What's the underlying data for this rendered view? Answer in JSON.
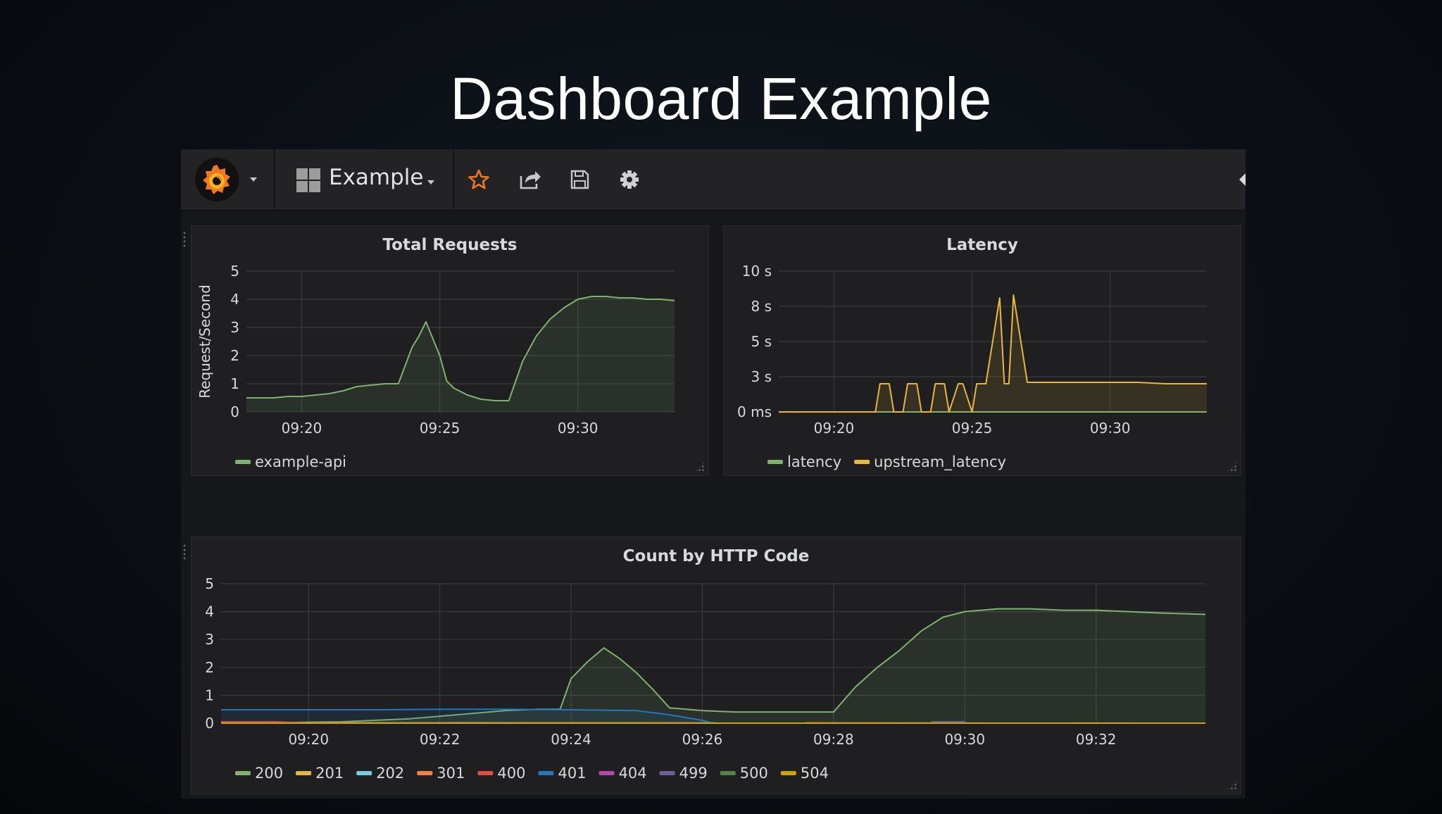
{
  "slide": {
    "title": "Dashboard Example"
  },
  "navbar": {
    "dashboard_name": "Example",
    "icons": [
      "grafana-logo-icon",
      "grid-icon",
      "star-icon",
      "share-icon",
      "save-icon",
      "gear-icon"
    ],
    "star_color": "#eb7b18"
  },
  "panels": {
    "total_requests": {
      "title": "Total Requests",
      "chart_data": {
        "type": "area",
        "title": "Total Requests",
        "xlabel": "",
        "ylabel": "Request/Second",
        "ylim": [
          0,
          5
        ],
        "y_ticks": [
          "0",
          "1",
          "2",
          "3",
          "4",
          "5"
        ],
        "x_ticks": [
          "09:20",
          "09:25",
          "09:30"
        ],
        "x_range": [
          "09:18:00",
          "09:33:30"
        ],
        "grid": true,
        "legend_position": "bottom-left",
        "series": [
          {
            "name": "example-api",
            "color": "#7eb26d",
            "x": [
              "09:18:00",
              "09:18:30",
              "09:19:00",
              "09:19:30",
              "09:20:00",
              "09:20:30",
              "09:21:00",
              "09:21:30",
              "09:22:00",
              "09:22:30",
              "09:23:00",
              "09:23:30",
              "09:24:00",
              "09:24:15",
              "09:24:30",
              "09:24:45",
              "09:25:00",
              "09:25:15",
              "09:25:30",
              "09:26:00",
              "09:26:30",
              "09:27:00",
              "09:27:30",
              "09:28:00",
              "09:28:30",
              "09:29:00",
              "09:29:30",
              "09:30:00",
              "09:30:30",
              "09:31:00",
              "09:31:30",
              "09:32:00",
              "09:32:30",
              "09:33:00",
              "09:33:30"
            ],
            "values": [
              0.5,
              0.5,
              0.5,
              0.55,
              0.55,
              0.6,
              0.65,
              0.75,
              0.9,
              0.95,
              1.0,
              1.0,
              2.3,
              2.7,
              3.2,
              2.6,
              2.0,
              1.1,
              0.85,
              0.6,
              0.45,
              0.4,
              0.4,
              1.8,
              2.7,
              3.3,
              3.7,
              4.0,
              4.1,
              4.1,
              4.05,
              4.05,
              4.0,
              4.0,
              3.95
            ]
          }
        ]
      }
    },
    "latency": {
      "title": "Latency",
      "chart_data": {
        "type": "area",
        "title": "Latency",
        "xlabel": "",
        "ylabel": "",
        "ylim": [
          0,
          10
        ],
        "y_ticks": [
          "0 ms",
          "3 s",
          "5 s",
          "8 s",
          "10 s"
        ],
        "x_ticks": [
          "09:20",
          "09:25",
          "09:30"
        ],
        "x_range": [
          "09:18:00",
          "09:33:30"
        ],
        "grid": true,
        "legend_position": "bottom-left",
        "series": [
          {
            "name": "latency",
            "color": "#7eb26d",
            "x": [
              "09:18:00",
              "09:33:30"
            ],
            "values": [
              0,
              0
            ]
          },
          {
            "name": "upstream_latency",
            "color": "#eab839",
            "x": [
              "09:18:00",
              "09:21:30",
              "09:21:40",
              "09:22:00",
              "09:22:10",
              "09:22:30",
              "09:22:40",
              "09:23:00",
              "09:23:10",
              "09:23:30",
              "09:23:40",
              "09:24:00",
              "09:24:10",
              "09:24:30",
              "09:24:40",
              "09:25:00",
              "09:25:10",
              "09:25:20",
              "09:25:30",
              "09:26:00",
              "09:26:10",
              "09:26:20",
              "09:26:30",
              "09:27:00",
              "09:27:30",
              "09:28:00",
              "09:29:00",
              "09:30:00",
              "09:31:00",
              "09:32:00",
              "09:33:30"
            ],
            "values": [
              0,
              0,
              2.0,
              2.0,
              0,
              0,
              2.0,
              2.0,
              0,
              0,
              2.0,
              2.0,
              0,
              2.0,
              2.0,
              0,
              2.0,
              2.0,
              2.0,
              8.1,
              2.0,
              2.0,
              8.3,
              2.1,
              2.1,
              2.1,
              2.1,
              2.1,
              2.1,
              2.0,
              2.0
            ]
          }
        ]
      }
    },
    "http_codes": {
      "title": "Count by HTTP Code",
      "chart_data": {
        "type": "area",
        "title": "Count by HTTP Code",
        "xlabel": "",
        "ylabel": "",
        "ylim": [
          0,
          5
        ],
        "y_ticks": [
          "0",
          "1",
          "2",
          "3",
          "4",
          "5"
        ],
        "x_ticks": [
          "09:20",
          "09:22",
          "09:24",
          "09:26",
          "09:28",
          "09:30",
          "09:32"
        ],
        "x_range": [
          "09:18:40",
          "09:33:40"
        ],
        "grid": true,
        "legend_position": "bottom-left",
        "series": [
          {
            "name": "200",
            "color": "#7eb26d",
            "x": [
              "09:18:40",
              "09:19:30",
              "09:20:30",
              "09:21:00",
              "09:21:30",
              "09:22:00",
              "09:22:30",
              "09:23:00",
              "09:23:30",
              "09:23:50",
              "09:24:00",
              "09:24:15",
              "09:24:30",
              "09:24:45",
              "09:25:00",
              "09:25:15",
              "09:25:30",
              "09:26:00",
              "09:26:30",
              "09:27:00",
              "09:27:30",
              "09:28:00",
              "09:28:20",
              "09:28:40",
              "09:29:00",
              "09:29:20",
              "09:29:40",
              "09:30:00",
              "09:30:30",
              "09:31:00",
              "09:31:30",
              "09:32:00",
              "09:32:30",
              "09:33:00",
              "09:33:40"
            ],
            "values": [
              0.0,
              0.02,
              0.05,
              0.1,
              0.15,
              0.25,
              0.35,
              0.45,
              0.5,
              0.5,
              1.6,
              2.2,
              2.7,
              2.3,
              1.8,
              1.2,
              0.55,
              0.45,
              0.4,
              0.4,
              0.4,
              0.4,
              1.3,
              2.0,
              2.6,
              3.3,
              3.8,
              4.0,
              4.1,
              4.1,
              4.05,
              4.05,
              4.0,
              3.95,
              3.9
            ]
          },
          {
            "name": "201",
            "color": "#eab839",
            "x": [
              "09:18:40",
              "09:33:40"
            ],
            "values": [
              0.0,
              0.0
            ]
          },
          {
            "name": "202",
            "color": "#6ed0e0",
            "x": [
              "09:18:40",
              "09:33:40"
            ],
            "values": [
              0.0,
              0.0
            ]
          },
          {
            "name": "301",
            "color": "#ef843c",
            "x": [
              "09:18:40",
              "09:33:40"
            ],
            "values": [
              0.02,
              0.0
            ]
          },
          {
            "name": "400",
            "color": "#e24d42",
            "x": [
              "09:18:40",
              "09:19:30",
              "09:20:00",
              "09:33:40"
            ],
            "values": [
              0.05,
              0.05,
              0.0,
              0.0
            ]
          },
          {
            "name": "401",
            "color": "#1f78c1",
            "x": [
              "09:18:40",
              "09:19:00",
              "09:20:00",
              "09:21:00",
              "09:22:00",
              "09:23:00",
              "09:24:00",
              "09:25:00",
              "09:25:30",
              "09:26:00",
              "09:26:10"
            ],
            "values": [
              0.48,
              0.48,
              0.48,
              0.48,
              0.5,
              0.5,
              0.48,
              0.45,
              0.3,
              0.1,
              0.0
            ]
          },
          {
            "name": "404",
            "color": "#ba43a9",
            "x": [
              "09:18:40",
              "09:33:40"
            ],
            "values": [
              0.0,
              0.0
            ]
          },
          {
            "name": "499",
            "color": "#705da0",
            "x": [
              "09:18:40",
              "09:29:30",
              "09:29:30",
              "09:30:00",
              "09:30:00",
              "09:33:40"
            ],
            "values": [
              0,
              0,
              0.05,
              0.05,
              0,
              0
            ]
          },
          {
            "name": "500",
            "color": "#508642",
            "x": [
              "09:18:40",
              "09:33:40"
            ],
            "values": [
              0.0,
              0.0
            ]
          },
          {
            "name": "504",
            "color": "#cca300",
            "x": [
              "09:18:40",
              "09:33:40"
            ],
            "values": [
              0.0,
              0.0
            ]
          }
        ]
      }
    }
  }
}
